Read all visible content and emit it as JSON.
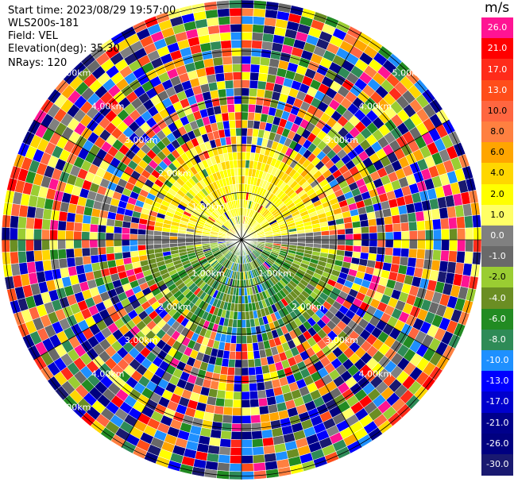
{
  "header": {
    "start_time": "Start time: 2023/08/29 19:57:00",
    "instrument": "WLS200s-181",
    "field": "Field: VEL",
    "elevation": "Elevation(deg): 35.30",
    "nrays": "NRays: 120"
  },
  "colorbar": {
    "unit": "m/s",
    "entries": [
      {
        "label": "26.0",
        "color": "#ff1493"
      },
      {
        "label": "21.0",
        "color": "#ff0000"
      },
      {
        "label": "17.0",
        "color": "#ff2b1a"
      },
      {
        "label": "13.0",
        "color": "#ff4d1a"
      },
      {
        "label": "10.0",
        "color": "#ff6640"
      },
      {
        "label": "8.0",
        "color": "#ff8040"
      },
      {
        "label": "6.0",
        "color": "#ffa500"
      },
      {
        "label": "4.0",
        "color": "#ffd700"
      },
      {
        "label": "2.0",
        "color": "#ffff00"
      },
      {
        "label": "1.0",
        "color": "#ffff66"
      },
      {
        "label": "0.0",
        "color": "#808080"
      },
      {
        "label": "-1.0",
        "color": "#696969"
      },
      {
        "label": "-2.0",
        "color": "#9acd32"
      },
      {
        "label": "-4.0",
        "color": "#6b8e23"
      },
      {
        "label": "-6.0",
        "color": "#228b22"
      },
      {
        "label": "-8.0",
        "color": "#2e8b57"
      },
      {
        "label": "-10.0",
        "color": "#1e90ff"
      },
      {
        "label": "-13.0",
        "color": "#0000ff"
      },
      {
        "label": "-17.0",
        "color": "#0000cd"
      },
      {
        "label": "-21.0",
        "color": "#00008b"
      },
      {
        "label": "-26.0",
        "color": "#000080"
      },
      {
        "label": "-30.0",
        "color": "#191970"
      }
    ]
  },
  "chart_data": {
    "type": "heatmap",
    "subtype": "polar ppi",
    "field": "VEL",
    "unit": "m/s",
    "nrays": 120,
    "range_rings_km": [
      1.0,
      2.0,
      3.0,
      4.0,
      5.0
    ],
    "range_ring_labels": [
      {
        "text": "1.00km",
        "ring": 1,
        "azimuth_deg": 315
      },
      {
        "text": "1.00km",
        "ring": 1,
        "azimuth_deg": 225
      },
      {
        "text": "1.00km",
        "ring": 1,
        "azimuth_deg": 135
      },
      {
        "text": "2.00km",
        "ring": 2,
        "azimuth_deg": 315
      },
      {
        "text": "2.00km",
        "ring": 2,
        "azimuth_deg": 225
      },
      {
        "text": "2.00km",
        "ring": 2,
        "azimuth_deg": 135
      },
      {
        "text": "3.00km",
        "ring": 3,
        "azimuth_deg": 315
      },
      {
        "text": "3.00km",
        "ring": 3,
        "azimuth_deg": 45
      },
      {
        "text": "3.00km",
        "ring": 3,
        "azimuth_deg": 225
      },
      {
        "text": "3.00km",
        "ring": 3,
        "azimuth_deg": 135
      },
      {
        "text": "4.00km",
        "ring": 4,
        "azimuth_deg": 315
      },
      {
        "text": "4.00km",
        "ring": 4,
        "azimuth_deg": 45
      },
      {
        "text": "4.00km",
        "ring": 4,
        "azimuth_deg": 225
      },
      {
        "text": "4.00km",
        "ring": 4,
        "azimuth_deg": 135
      },
      {
        "text": "5.00km",
        "ring": 5,
        "azimuth_deg": 315
      },
      {
        "text": "5.00km",
        "ring": 5,
        "azimuth_deg": 45
      },
      {
        "text": "5.00km",
        "ring": 5,
        "azimuth_deg": 225
      }
    ],
    "pattern": "near range (< ~2 km): northern half positive 1-6 m/s (yellow/orange), southern half negative -1 to -10 m/s (green/blue); beyond ~2 km: noisy random values spanning the full color scale"
  }
}
